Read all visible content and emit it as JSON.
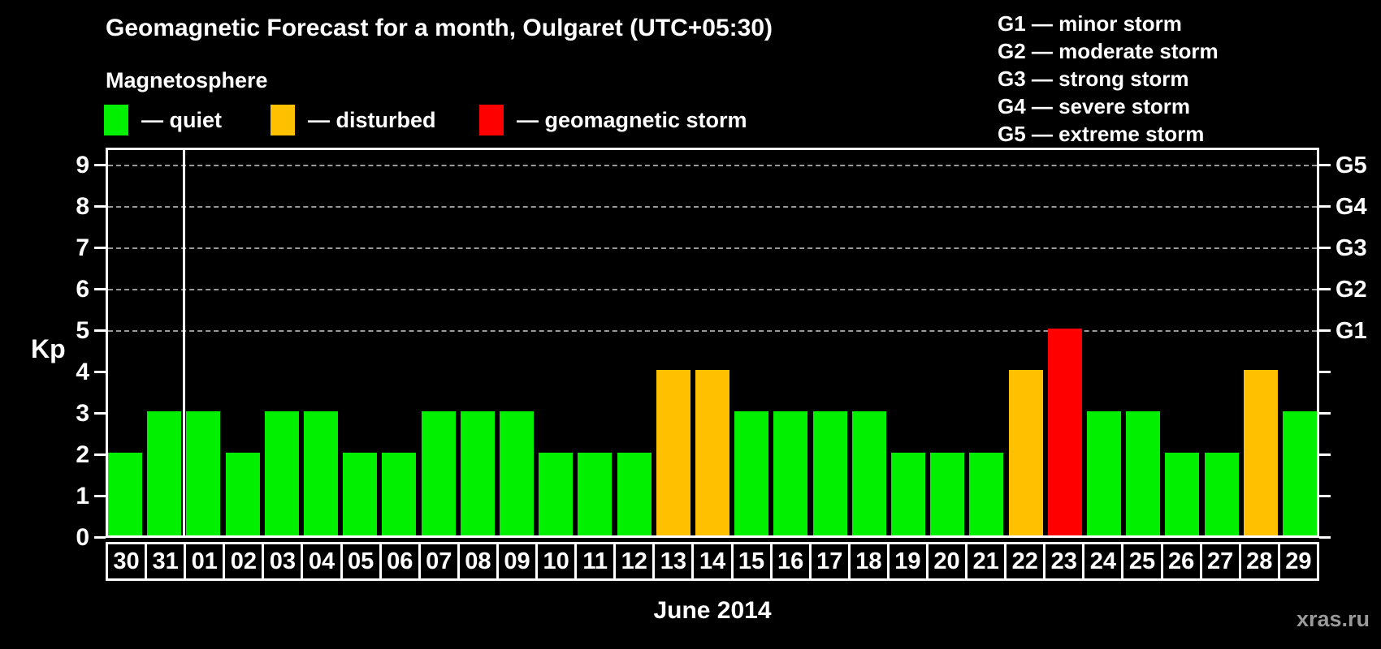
{
  "title": "Geomagnetic Forecast for a month, Oulgaret (UTC+05:30)",
  "subtitle": "Magnetosphere",
  "legend": {
    "items": [
      {
        "key": "quiet",
        "label": "— quiet",
        "color": "#00f000"
      },
      {
        "key": "disturbed",
        "label": "— disturbed",
        "color": "#ffc000"
      },
      {
        "key": "storm",
        "label": "— geomagnetic storm",
        "color": "#ff0000"
      }
    ]
  },
  "g_scale_legend": [
    "G1 — minor storm",
    "G2 — moderate storm",
    "G3 — strong storm",
    "G4 — severe storm",
    "G5 — extreme storm"
  ],
  "watermark": "xras.ru",
  "chart_data": {
    "type": "bar",
    "title": "Geomagnetic Forecast for a month, Oulgaret (UTC+05:30)",
    "xlabel": "June 2014",
    "ylabel": "Kp",
    "ylim": [
      0,
      9.4
    ],
    "yticks": [
      0,
      1,
      2,
      3,
      4,
      5,
      6,
      7,
      8,
      9
    ],
    "gridlines_at": [
      5,
      6,
      7,
      8,
      9
    ],
    "grid": "dashed-horizontal",
    "legend_position": "top",
    "right_axis_labels": [
      {
        "kp": 5,
        "label": "G1"
      },
      {
        "kp": 6,
        "label": "G2"
      },
      {
        "kp": 7,
        "label": "G3"
      },
      {
        "kp": 8,
        "label": "G4"
      },
      {
        "kp": 9,
        "label": "G5"
      }
    ],
    "month_separator_after_index": 1,
    "categories": [
      "30",
      "31",
      "01",
      "02",
      "03",
      "04",
      "05",
      "06",
      "07",
      "08",
      "09",
      "10",
      "11",
      "12",
      "13",
      "14",
      "15",
      "16",
      "17",
      "18",
      "19",
      "20",
      "21",
      "22",
      "23",
      "24",
      "25",
      "26",
      "27",
      "28",
      "29"
    ],
    "values": [
      2,
      3,
      3,
      2,
      3,
      3,
      2,
      2,
      3,
      3,
      3,
      2,
      2,
      2,
      4,
      4,
      3,
      3,
      3,
      3,
      2,
      2,
      2,
      4,
      5,
      3,
      3,
      2,
      2,
      4,
      3
    ],
    "statuses": [
      "quiet",
      "quiet",
      "quiet",
      "quiet",
      "quiet",
      "quiet",
      "quiet",
      "quiet",
      "quiet",
      "quiet",
      "quiet",
      "quiet",
      "quiet",
      "quiet",
      "disturbed",
      "disturbed",
      "quiet",
      "quiet",
      "quiet",
      "quiet",
      "quiet",
      "quiet",
      "quiet",
      "disturbed",
      "storm",
      "quiet",
      "quiet",
      "quiet",
      "quiet",
      "disturbed",
      "quiet"
    ],
    "colors": {
      "quiet": "#00f000",
      "disturbed": "#ffc000",
      "storm": "#ff0000"
    }
  }
}
